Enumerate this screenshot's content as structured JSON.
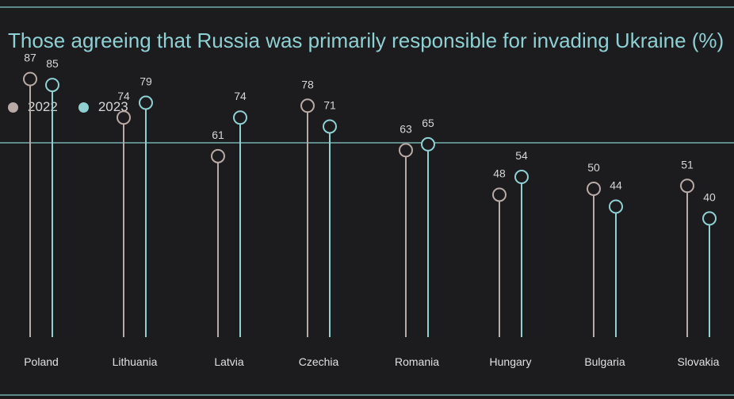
{
  "chart_data": {
    "type": "dot-plot",
    "title": "Those agreeing that Russia was primarily responsible for invading Ukraine  (%)",
    "categories": [
      "Poland",
      "Lithuania",
      "Latvia",
      "Czechia",
      "Romania",
      "Hungary",
      "Bulgaria",
      "Slovakia"
    ],
    "series": [
      {
        "name": "2022",
        "color": "#b8aaa6",
        "values": [
          87,
          74,
          61,
          78,
          63,
          48,
          50,
          51
        ]
      },
      {
        "name": "2023",
        "color": "#8fd0d3",
        "values": [
          85,
          79,
          74,
          71,
          65,
          54,
          44,
          40
        ]
      }
    ],
    "legend_position": "top-left",
    "grid": false
  }
}
